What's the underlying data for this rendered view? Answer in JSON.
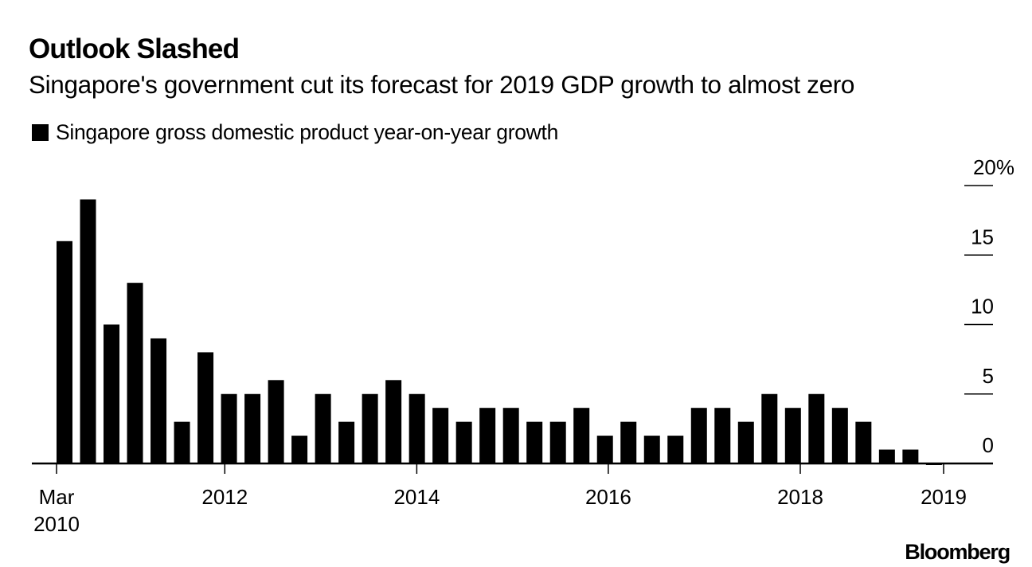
{
  "header": {
    "title": "Outlook Slashed",
    "subtitle": "Singapore's government cut its forecast for 2019 GDP growth to almost zero"
  },
  "legend": {
    "label": "Singapore gross domestic product year-on-year growth",
    "color": "#000000"
  },
  "footer": {
    "brand": "Bloomberg"
  },
  "chart_data": {
    "type": "bar",
    "title": "Outlook Slashed",
    "subtitle": "Singapore's government cut its forecast for 2019 GDP growth to almost zero",
    "xlabel": "",
    "ylabel": "",
    "y_unit": "%",
    "ylim": [
      0,
      20
    ],
    "y_ticks": [
      {
        "value": 20,
        "label": "20%"
      },
      {
        "value": 15,
        "label": "15"
      },
      {
        "value": 10,
        "label": "10"
      },
      {
        "value": 5,
        "label": "5"
      },
      {
        "value": 0,
        "label": "0"
      }
    ],
    "y_axis_position": "right",
    "grid": false,
    "legend_position": "top-left",
    "bar_color": "#000000",
    "categories": [
      "Mar 2010",
      "Jun 2010",
      "Sep 2010",
      "Dec 2010",
      "Mar 2011",
      "Jun 2011",
      "Sep 2011",
      "Dec 2011",
      "Mar 2012",
      "Jun 2012",
      "Sep 2012",
      "Dec 2012",
      "Mar 2013",
      "Jun 2013",
      "Sep 2013",
      "Dec 2013",
      "Mar 2014",
      "Jun 2014",
      "Sep 2014",
      "Dec 2014",
      "Mar 2015",
      "Jun 2015",
      "Sep 2015",
      "Dec 2015",
      "Mar 2016",
      "Jun 2016",
      "Sep 2016",
      "Dec 2016",
      "Mar 2017",
      "Jun 2017",
      "Sep 2017",
      "Dec 2017",
      "Mar 2018",
      "Jun 2018",
      "Sep 2018",
      "Dec 2018",
      "Mar 2019",
      "Jun 2019"
    ],
    "series": [
      {
        "name": "Singapore gross domestic product year-on-year growth",
        "values": [
          16,
          19,
          10,
          13,
          9,
          3,
          8,
          5,
          5,
          6,
          2,
          5,
          3,
          5,
          6,
          5,
          4,
          3,
          4,
          4,
          3,
          3,
          4,
          2,
          3,
          2,
          2,
          4,
          4,
          3,
          5,
          4,
          5,
          4,
          3,
          1,
          1,
          -0.1
        ]
      }
    ],
    "x_ticks": [
      {
        "label": "Mar",
        "label2": "2010",
        "at_quarter_index": 0
      },
      {
        "label": "2012",
        "label2": "",
        "at_quarter_index": 7.16
      },
      {
        "label": "2014",
        "label2": "",
        "at_quarter_index": 15.33
      },
      {
        "label": "2016",
        "label2": "",
        "at_quarter_index": 23.48
      },
      {
        "label": "2018",
        "label2": "",
        "at_quarter_index": 31.65
      },
      {
        "label": "2019",
        "label2": "",
        "at_quarter_index": 37.75
      }
    ]
  }
}
